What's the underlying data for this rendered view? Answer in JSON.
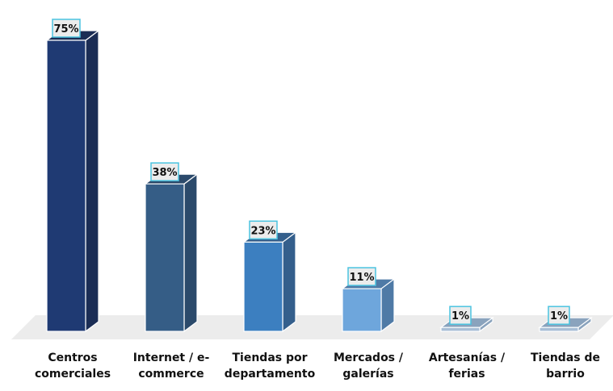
{
  "chart_data": {
    "type": "bar",
    "style": "3d-column",
    "title": "",
    "xlabel": "",
    "ylabel": "",
    "ylim": [
      0,
      75
    ],
    "grid": false,
    "categories": [
      [
        "Centros",
        "comerciales"
      ],
      [
        "Internet / e-",
        "commerce"
      ],
      [
        "Tiendas por",
        "departamento"
      ],
      [
        "Mercados /",
        "galerías"
      ],
      [
        "Artesanías /",
        "ferias"
      ],
      [
        "Tiendas de",
        "barrio"
      ]
    ],
    "values": [
      75,
      38,
      23,
      11,
      1,
      1
    ],
    "data_labels": [
      "75%",
      "38%",
      "23%",
      "11%",
      "1%",
      "1%"
    ],
    "colors": [
      "#1f3a73",
      "#355d86",
      "#3c7fc0",
      "#6ea6dc",
      "#a9bfd6",
      "#a9bfd6"
    ],
    "side_colors": [
      "#1b2d55",
      "#2b4a6b",
      "#345f8c",
      "#4f7aa6",
      "#8aa3bd",
      "#8aa3bd"
    ],
    "label_box": {
      "border": "#4bc3e0",
      "fill": "#ececec"
    },
    "floor_color": "#ececec"
  }
}
